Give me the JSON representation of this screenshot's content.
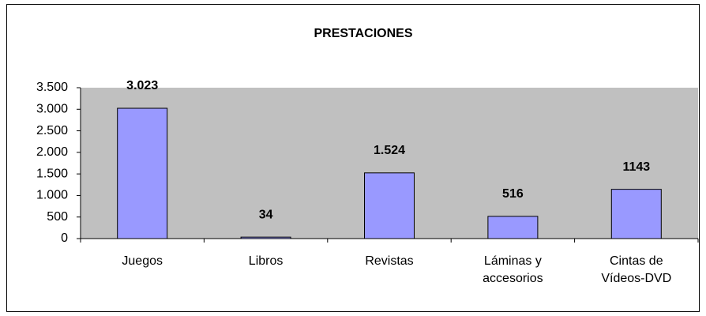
{
  "chart_data": {
    "type": "bar",
    "title": "PRESTACIONES",
    "categories": [
      "Juegos",
      "Libros",
      "Revistas",
      "Láminas y accesorios",
      "Cintas de Vídeos-DVD"
    ],
    "values": [
      3023,
      34,
      1524,
      516,
      1143
    ],
    "value_labels": [
      "3.023",
      "34",
      "1.524",
      "516",
      "1143"
    ],
    "color": "#9999ff",
    "ylim": [
      0,
      3500
    ],
    "yticks": [
      0,
      500,
      {
        "value": 1000,
        "label": "1.000"
      },
      {
        "value": 1500,
        "label": "1.500"
      },
      {
        "value": 2000,
        "label": "2.000"
      },
      {
        "value": 2500,
        "label": "2.500"
      },
      {
        "value": 3000,
        "label": "3.000"
      },
      {
        "value": 3500,
        "label": "3.500"
      }
    ],
    "grid": false
  }
}
